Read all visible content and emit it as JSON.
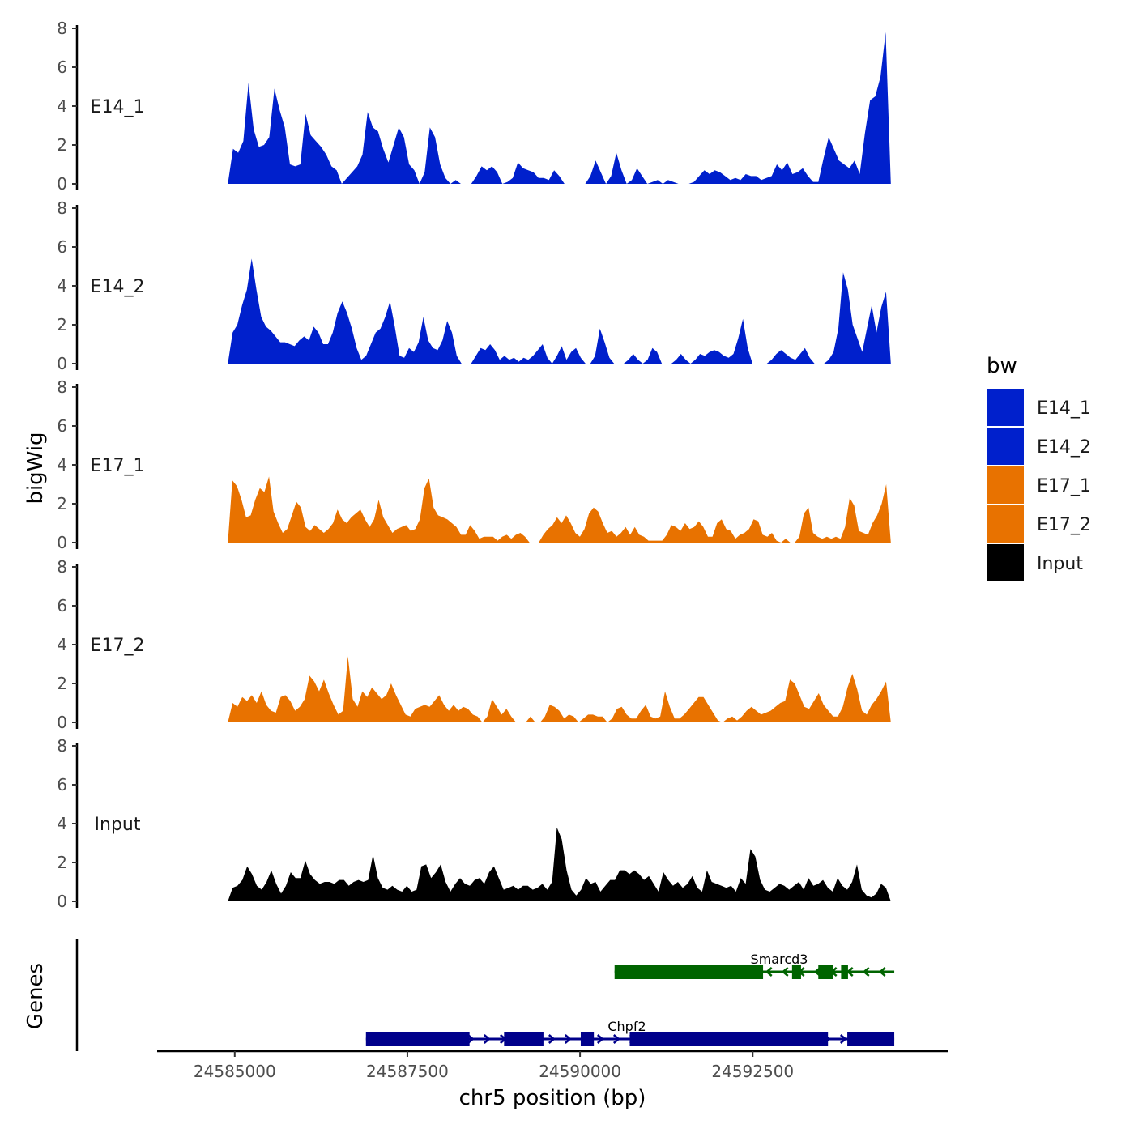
{
  "chart_data": {
    "type": "area",
    "chromosome": "chr5",
    "xlabel": "chr5 position (bp)",
    "ylabel": "bigWig",
    "genes_label": "Genes",
    "xlim": [
      24583900,
      24595300
    ],
    "x_ticks": [
      24585000,
      24587500,
      24590000,
      24592500
    ],
    "x_tick_labels": [
      "24585000",
      "24587500",
      "24590000",
      "24592500"
    ],
    "ylim": [
      0,
      8
    ],
    "y_ticks": [
      0,
      2,
      4,
      6,
      8
    ],
    "y_tick_labels": [
      "0",
      "2",
      "4",
      "6",
      "8"
    ],
    "legend": {
      "title": "bw",
      "items": [
        {
          "label": "E14_1",
          "color": "#0020CC"
        },
        {
          "label": "E14_2",
          "color": "#0020CC"
        },
        {
          "label": "E17_1",
          "color": "#E87200"
        },
        {
          "label": "E17_2",
          "color": "#E87200"
        },
        {
          "label": "Input",
          "color": "#000000"
        }
      ]
    },
    "series": [
      {
        "name": "E14_1",
        "color": "#0020CC",
        "x_start": 24584900,
        "x_end": 24594500,
        "values": [
          0,
          1.8,
          1.6,
          2.2,
          5.2,
          2.8,
          1.9,
          2.0,
          2.4,
          4.9,
          3.8,
          2.9,
          1.0,
          0.9,
          1.0,
          3.6,
          2.5,
          2.2,
          1.9,
          1.5,
          0.9,
          0.7,
          0,
          0.3,
          0.6,
          0.9,
          1.5,
          3.7,
          2.9,
          2.7,
          1.8,
          1.1,
          2.0,
          2.9,
          2.4,
          1.0,
          0.7,
          0,
          0.6,
          2.9,
          2.4,
          1.0,
          0.3,
          0,
          0.2,
          0,
          0,
          0,
          0.4,
          0.9,
          0.7,
          0.9,
          0.6,
          0,
          0.1,
          0.3,
          1.1,
          0.8,
          0.7,
          0.6,
          0.3,
          0.3,
          0.2,
          0.7,
          0.4,
          0,
          0,
          0,
          0,
          0,
          0.4,
          1.2,
          0.6,
          0,
          0.4,
          1.6,
          0.7,
          0,
          0.2,
          0.8,
          0.4,
          0,
          0.1,
          0.2,
          0,
          0.2,
          0.1,
          0,
          0,
          0,
          0.1,
          0.4,
          0.7,
          0.5,
          0.7,
          0.6,
          0.4,
          0.2,
          0.3,
          0.2,
          0.5,
          0.4,
          0.4,
          0.2,
          0.3,
          0.4,
          1.0,
          0.7,
          1.1,
          0.5,
          0.6,
          0.8,
          0.4,
          0.1,
          0.1,
          1.3,
          2.4,
          1.8,
          1.2,
          1.0,
          0.8,
          1.2,
          0.5,
          2.6,
          4.3,
          4.5,
          5.5,
          7.8,
          0
        ]
      },
      {
        "name": "E14_2",
        "color": "#0020CC",
        "x_start": 24584900,
        "x_end": 24594500,
        "values": [
          0,
          1.6,
          2.0,
          3.0,
          3.8,
          5.4,
          3.8,
          2.4,
          1.9,
          1.7,
          1.4,
          1.1,
          1.1,
          1.0,
          0.9,
          1.2,
          1.4,
          1.2,
          1.9,
          1.6,
          1.0,
          1.0,
          1.6,
          2.6,
          3.2,
          2.6,
          1.8,
          0.8,
          0.2,
          0.4,
          1.0,
          1.6,
          1.8,
          2.4,
          3.2,
          1.9,
          0.4,
          0.3,
          0.8,
          0.6,
          1.1,
          2.4,
          1.2,
          0.8,
          0.7,
          1.2,
          2.2,
          1.6,
          0.4,
          0,
          0,
          0,
          0.4,
          0.8,
          0.7,
          1.0,
          0.7,
          0.2,
          0.4,
          0.2,
          0.3,
          0.1,
          0.3,
          0.2,
          0.4,
          0.7,
          1.0,
          0.3,
          0,
          0.4,
          0.9,
          0.2,
          0.6,
          0.8,
          0.3,
          0,
          0,
          0.4,
          1.8,
          1.1,
          0.3,
          0,
          0,
          0,
          0.2,
          0.5,
          0.2,
          0,
          0.2,
          0.8,
          0.6,
          0,
          0,
          0,
          0.2,
          0.5,
          0.2,
          0,
          0.2,
          0.5,
          0.4,
          0.6,
          0.7,
          0.6,
          0.4,
          0.3,
          0.5,
          1.3,
          2.3,
          0.8,
          0,
          0,
          0,
          0,
          0.2,
          0.5,
          0.7,
          0.5,
          0.3,
          0.2,
          0.5,
          0.8,
          0.3,
          0,
          0,
          0,
          0.2,
          0.6,
          1.8,
          4.7,
          3.8,
          2.0,
          1.3,
          0.6,
          1.8,
          3.0,
          1.6,
          2.9,
          3.7,
          0
        ]
      },
      {
        "name": "E17_1",
        "color": "#E87200",
        "x_start": 24584900,
        "x_end": 24594500,
        "values": [
          0,
          3.2,
          2.9,
          2.2,
          1.3,
          1.4,
          2.2,
          2.8,
          2.6,
          3.4,
          1.6,
          1.0,
          0.5,
          0.7,
          1.4,
          2.1,
          1.8,
          0.8,
          0.6,
          0.9,
          0.7,
          0.5,
          0.7,
          1.0,
          1.7,
          1.2,
          1.0,
          1.3,
          1.5,
          1.7,
          1.2,
          0.8,
          1.2,
          2.2,
          1.3,
          0.9,
          0.5,
          0.7,
          0.8,
          0.9,
          0.6,
          0.7,
          1.2,
          2.8,
          3.3,
          1.8,
          1.4,
          1.3,
          1.2,
          1.0,
          0.8,
          0.4,
          0.4,
          0.9,
          0.6,
          0.2,
          0.3,
          0.3,
          0.3,
          0.1,
          0.3,
          0.4,
          0.2,
          0.4,
          0.5,
          0.3,
          0,
          0,
          0,
          0.4,
          0.7,
          0.9,
          1.3,
          1.0,
          1.4,
          1.0,
          0.5,
          0.3,
          0.7,
          1.5,
          1.8,
          1.6,
          1.0,
          0.5,
          0.6,
          0.3,
          0.5,
          0.8,
          0.4,
          0.8,
          0.4,
          0.3,
          0.1,
          0.1,
          0.1,
          0.1,
          0.4,
          0.9,
          0.8,
          0.6,
          1.0,
          0.7,
          0.8,
          1.1,
          0.8,
          0.3,
          0.3,
          1.0,
          1.2,
          0.7,
          0.6,
          0.2,
          0.4,
          0.5,
          0.7,
          1.2,
          1.1,
          0.4,
          0.3,
          0.5,
          0.1,
          0,
          0.2,
          0,
          0,
          0.3,
          1.5,
          1.8,
          0.5,
          0.3,
          0.2,
          0.3,
          0.2,
          0.3,
          0.2,
          0.8,
          2.3,
          1.9,
          0.6,
          0.5,
          0.4,
          1.0,
          1.4,
          2.0,
          3.0,
          0
        ]
      },
      {
        "name": "E17_2",
        "color": "#E87200",
        "x_start": 24584900,
        "x_end": 24594500,
        "values": [
          0,
          1.0,
          0.8,
          1.3,
          1.1,
          1.4,
          1.0,
          1.6,
          0.9,
          0.6,
          0.5,
          1.3,
          1.4,
          1.1,
          0.6,
          0.8,
          1.2,
          2.4,
          2.1,
          1.6,
          2.2,
          1.5,
          0.9,
          0.4,
          0.6,
          3.4,
          1.2,
          0.8,
          1.6,
          1.3,
          1.8,
          1.5,
          1.2,
          1.4,
          2.0,
          1.4,
          0.9,
          0.4,
          0.3,
          0.7,
          0.8,
          0.9,
          0.8,
          1.1,
          1.4,
          0.9,
          0.6,
          0.9,
          0.6,
          0.8,
          0.7,
          0.4,
          0.3,
          0,
          0.3,
          1.2,
          0.8,
          0.4,
          0.7,
          0.3,
          0,
          0,
          0,
          0.3,
          0,
          0,
          0.3,
          0.9,
          0.8,
          0.6,
          0.2,
          0.4,
          0.3,
          0,
          0.2,
          0.4,
          0.4,
          0.3,
          0.3,
          0,
          0.2,
          0.7,
          0.8,
          0.4,
          0.2,
          0.2,
          0.6,
          0.9,
          0.3,
          0.2,
          0.3,
          1.6,
          0.8,
          0.2,
          0.2,
          0.4,
          0.7,
          1.0,
          1.3,
          1.3,
          0.9,
          0.5,
          0.1,
          0,
          0.2,
          0.3,
          0.1,
          0.3,
          0.6,
          0.8,
          0.6,
          0.4,
          0.5,
          0.6,
          0.8,
          1.0,
          1.1,
          2.2,
          2.0,
          1.4,
          0.8,
          0.7,
          1.1,
          1.5,
          0.9,
          0.6,
          0.3,
          0.3,
          0.8,
          1.8,
          2.5,
          1.7,
          0.6,
          0.4,
          0.9,
          1.2,
          1.6,
          2.1,
          0
        ]
      },
      {
        "name": "Input",
        "color": "#000000",
        "x_start": 24584900,
        "x_end": 24594500,
        "values": [
          0,
          0.7,
          0.8,
          1.1,
          1.8,
          1.4,
          0.8,
          0.6,
          1.0,
          1.6,
          0.9,
          0.4,
          0.8,
          1.5,
          1.2,
          1.2,
          2.1,
          1.4,
          1.1,
          0.9,
          1.0,
          1.0,
          0.9,
          1.1,
          1.1,
          0.8,
          1.0,
          1.1,
          1.0,
          1.1,
          2.4,
          1.2,
          0.7,
          0.6,
          0.8,
          0.6,
          0.5,
          0.8,
          0.5,
          0.6,
          1.8,
          1.9,
          1.2,
          1.5,
          1.9,
          1.0,
          0.5,
          0.9,
          1.2,
          0.9,
          0.8,
          1.1,
          1.2,
          0.9,
          1.5,
          1.8,
          1.2,
          0.6,
          0.7,
          0.8,
          0.6,
          0.8,
          0.8,
          0.6,
          0.7,
          0.9,
          0.6,
          1.0,
          3.8,
          3.2,
          1.6,
          0.6,
          0.3,
          0.6,
          1.2,
          0.9,
          1.0,
          0.5,
          0.8,
          1.1,
          1.1,
          1.6,
          1.6,
          1.4,
          1.6,
          1.4,
          1.1,
          1.3,
          0.9,
          0.5,
          1.5,
          1.1,
          0.8,
          1.0,
          0.7,
          0.9,
          1.3,
          0.7,
          0.5,
          1.6,
          1.0,
          0.9,
          0.8,
          0.7,
          0.8,
          0.5,
          1.2,
          0.9,
          2.7,
          2.3,
          1.1,
          0.6,
          0.5,
          0.7,
          0.9,
          0.8,
          0.6,
          0.8,
          1.0,
          0.6,
          1.2,
          0.8,
          0.9,
          1.1,
          0.7,
          0.5,
          1.2,
          0.8,
          0.6,
          1.0,
          1.9,
          0.6,
          0.3,
          0.2,
          0.4,
          0.9,
          0.7,
          0
        ]
      }
    ],
    "genes": [
      {
        "name": "Smarcd3",
        "strand": "-",
        "color": "#006400",
        "start": 24590500,
        "end": 24594550,
        "exons": [
          [
            24590500,
            24592650
          ],
          [
            24593070,
            24593200
          ],
          [
            24593450,
            24593660
          ],
          [
            24593780,
            24593880
          ]
        ]
      },
      {
        "name": "Chpf2",
        "strand": "+",
        "color": "#00008B",
        "start": 24586900,
        "end": 24594550,
        "exons": [
          [
            24586900,
            24588400
          ],
          [
            24588900,
            24589470
          ],
          [
            24590010,
            24590200
          ],
          [
            24590720,
            24593590
          ],
          [
            24593870,
            24594550
          ]
        ]
      }
    ]
  }
}
